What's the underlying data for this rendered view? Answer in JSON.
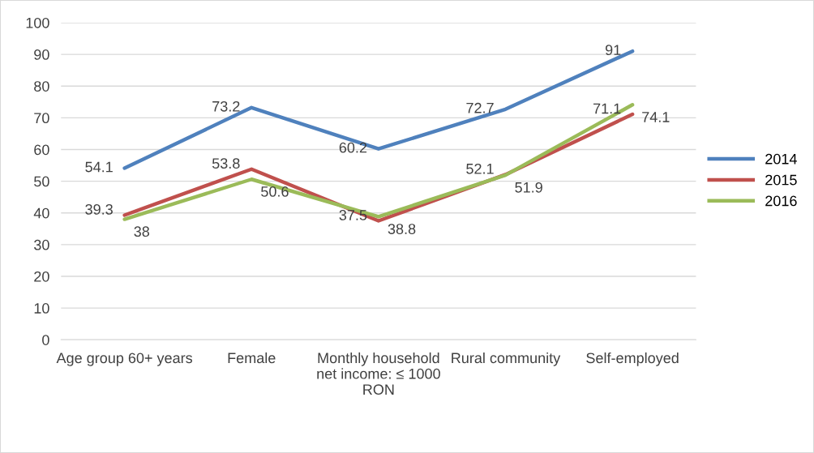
{
  "chart_data": {
    "type": "line",
    "categories": [
      "Age group 60+ years",
      "Female",
      "Monthly household net income: ≤ 1000 RON",
      "Rural community",
      "Self-employed"
    ],
    "series": [
      {
        "name": "2014",
        "color": "#4f81bd",
        "values": [
          54.1,
          73.2,
          60.2,
          72.7,
          91
        ]
      },
      {
        "name": "2015",
        "color": "#c0504d",
        "values": [
          39.3,
          53.8,
          37.5,
          52.1,
          71.1
        ]
      },
      {
        "name": "2016",
        "color": "#9bbb59",
        "values": [
          38,
          50.6,
          38.8,
          51.9,
          74.1
        ]
      }
    ],
    "ylim": [
      0,
      100
    ],
    "yticks": [
      0,
      10,
      20,
      30,
      40,
      50,
      60,
      70,
      80,
      90,
      100
    ],
    "grid": "y",
    "legend": "right",
    "data_labels": true,
    "marker": "none",
    "line_style": "solid"
  }
}
